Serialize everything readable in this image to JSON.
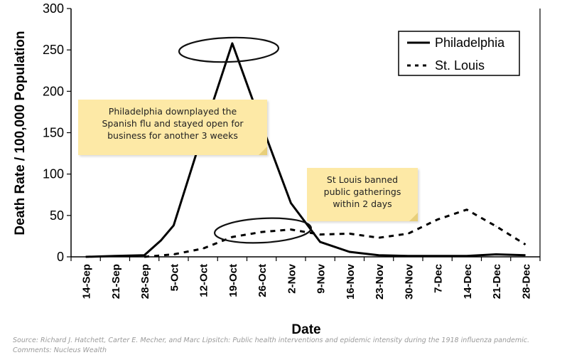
{
  "chart_data": {
    "type": "line",
    "xlabel": "Date",
    "ylabel": "Death Rate / 100,000 Population",
    "ylim": [
      0,
      300
    ],
    "yticks": [
      0,
      50,
      100,
      150,
      200,
      250,
      300
    ],
    "grid": false,
    "legend_position": "top-right",
    "categories": [
      "14-Sep",
      "21-Sep",
      "28-Sep",
      "5-Oct",
      "12-Oct",
      "19-Oct",
      "26-Oct",
      "2-Nov",
      "9-Nov",
      "16-Nov",
      "23-Nov",
      "30-Nov",
      "7-Dec",
      "14-Dec",
      "21-Dec",
      "28-Dec"
    ],
    "series": [
      {
        "name": "Philadelphia",
        "style": "solid",
        "x": [
          "14-Sep",
          "21-Sep",
          "28-Sep",
          "2-Oct",
          "5-Oct",
          "12-Oct",
          "19-Oct",
          "26-Oct",
          "2-Nov",
          "9-Nov",
          "16-Nov",
          "23-Nov",
          "30-Nov",
          "7-Dec",
          "14-Dec",
          "21-Dec",
          "28-Dec"
        ],
        "values": [
          0,
          1,
          2,
          20,
          38,
          150,
          258,
          160,
          65,
          18,
          6,
          2,
          1,
          1,
          1,
          3,
          2
        ]
      },
      {
        "name": "St. Louis",
        "style": "dashed",
        "x": [
          "28-Sep",
          "5-Oct",
          "12-Oct",
          "19-Oct",
          "26-Oct",
          "2-Nov",
          "9-Nov",
          "16-Nov",
          "23-Nov",
          "30-Nov",
          "7-Dec",
          "14-Dec",
          "21-Dec",
          "28-Dec"
        ],
        "values": [
          0,
          3,
          10,
          24,
          30,
          33,
          27,
          28,
          23,
          28,
          45,
          57,
          37,
          15
        ]
      }
    ],
    "annotations": [
      "Philadelphia downplayed the\nSpanish flu and stayed open for\nbusiness for another 3 weeks",
      "St Louis banned\npublic gatherings\nwithin 2 days"
    ]
  },
  "source_line1": "Source: Richard J. Hatchett, Carter E. Mecher, and Marc Lipsitch: Public health interventions and epidemic intensity during the 1918 influenza pandemic.",
  "source_line2": "Comments: Nucleus Wealth"
}
